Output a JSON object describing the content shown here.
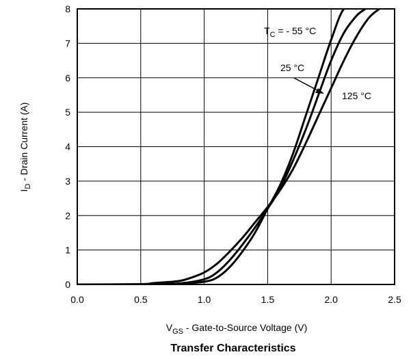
{
  "chart_data": {
    "type": "line",
    "title": "Transfer Characteristics",
    "xlabel": {
      "main": "V",
      "sub": "GS",
      "rest": " - Gate-to-Source Voltage (V)"
    },
    "ylabel": {
      "main": "I",
      "sub": "D",
      "rest": " - Drain Current (A)"
    },
    "xlim": [
      0,
      2.5
    ],
    "ylim": [
      0,
      8
    ],
    "xticks": [
      "0.0",
      "0.5",
      "1.0",
      "1.5",
      "2.0",
      "2.5"
    ],
    "yticks": [
      "0",
      "1",
      "2",
      "3",
      "4",
      "5",
      "6",
      "7",
      "8"
    ],
    "grid": true,
    "series": [
      {
        "name": "T_C = - 55 °C",
        "x": [
          0.0,
          0.5,
          0.8,
          1.0,
          1.1,
          1.2,
          1.3,
          1.4,
          1.5,
          1.6,
          1.7,
          1.8,
          1.9,
          2.0,
          2.1,
          2.2
        ],
        "y": [
          0.0,
          0.0,
          0.02,
          0.08,
          0.2,
          0.5,
          0.95,
          1.5,
          2.2,
          2.9,
          3.8,
          4.9,
          6.0,
          7.1,
          8.0,
          8.0
        ]
      },
      {
        "name": "25 °C",
        "x": [
          0.0,
          0.5,
          0.8,
          1.0,
          1.1,
          1.2,
          1.3,
          1.4,
          1.5,
          1.6,
          1.7,
          1.8,
          1.9,
          2.0,
          2.1,
          2.2,
          2.27
        ],
        "y": [
          0.0,
          0.0,
          0.03,
          0.15,
          0.35,
          0.7,
          1.15,
          1.65,
          2.2,
          2.8,
          3.6,
          4.5,
          5.5,
          6.5,
          7.3,
          7.8,
          8.0
        ]
      },
      {
        "name": "125 °C",
        "x": [
          0.0,
          0.5,
          0.6,
          0.8,
          0.9,
          1.0,
          1.1,
          1.2,
          1.3,
          1.4,
          1.5,
          1.6,
          1.7,
          1.8,
          1.9,
          2.0,
          2.1,
          2.2,
          2.3,
          2.38
        ],
        "y": [
          0.0,
          0.01,
          0.04,
          0.1,
          0.2,
          0.35,
          0.6,
          0.95,
          1.35,
          1.8,
          2.25,
          2.75,
          3.35,
          4.1,
          4.9,
          5.7,
          6.5,
          7.2,
          7.75,
          8.0
        ]
      }
    ],
    "annotations": {
      "tc_label": {
        "main": "T",
        "sub": "C",
        "rest": " = - 55 °C"
      },
      "t25_label": "25 °C",
      "t125_label": "125 °C"
    }
  }
}
